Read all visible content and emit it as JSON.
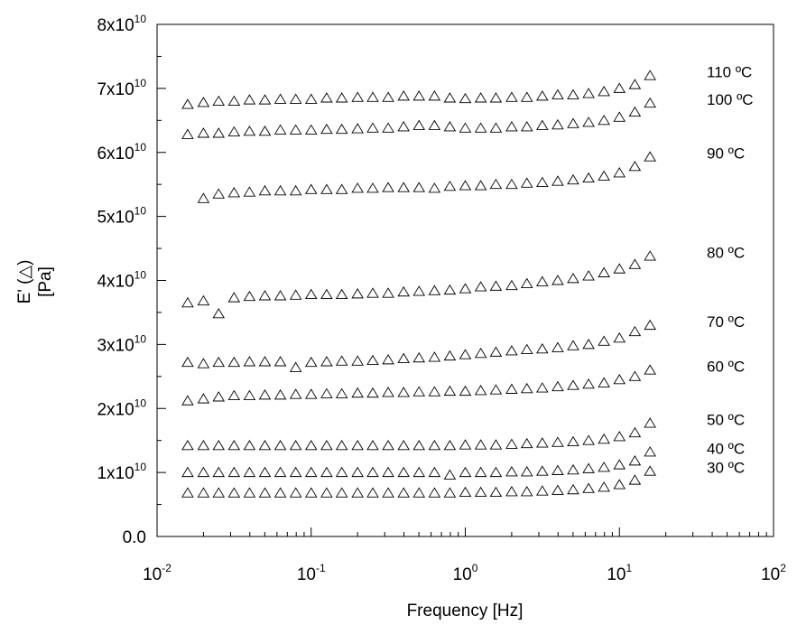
{
  "chart_data": {
    "type": "scatter",
    "title": "",
    "xlabel": "Frequency [Hz]",
    "ylabel_line1": "E' (△)",
    "ylabel_line2": "[Pa]",
    "xscale": "log",
    "xlim": [
      0.01,
      100
    ],
    "ylim": [
      0,
      80000000000
    ],
    "grid": false,
    "marker": "open-triangle",
    "x_ticks": [
      {
        "value": 0.01,
        "base": "10",
        "exp": "-2"
      },
      {
        "value": 0.1,
        "base": "10",
        "exp": "-1"
      },
      {
        "value": 1,
        "base": "10",
        "exp": "0"
      },
      {
        "value": 10,
        "base": "10",
        "exp": "1"
      },
      {
        "value": 100,
        "base": "10",
        "exp": "2"
      }
    ],
    "y_ticks": [
      {
        "value": 0,
        "base": "0.0",
        "exp": ""
      },
      {
        "value": 10000000000,
        "base": "1x10",
        "exp": "10"
      },
      {
        "value": 20000000000,
        "base": "2x10",
        "exp": "10"
      },
      {
        "value": 30000000000,
        "base": "3x10",
        "exp": "10"
      },
      {
        "value": 40000000000,
        "base": "4x10",
        "exp": "10"
      },
      {
        "value": 50000000000,
        "base": "5x10",
        "exp": "10"
      },
      {
        "value": 60000000000,
        "base": "6x10",
        "exp": "10"
      },
      {
        "value": 70000000000,
        "base": "7x10",
        "exp": "10"
      },
      {
        "value": 80000000000,
        "base": "8x10",
        "exp": "10"
      }
    ],
    "x": [
      0.0158,
      0.02,
      0.0251,
      0.0316,
      0.0398,
      0.0501,
      0.0631,
      0.0794,
      0.1,
      0.126,
      0.158,
      0.2,
      0.251,
      0.316,
      0.398,
      0.501,
      0.631,
      0.794,
      1.0,
      1.26,
      1.58,
      2.0,
      2.51,
      3.16,
      3.98,
      5.01,
      6.31,
      7.94,
      10.0,
      12.6,
      15.8
    ],
    "series": [
      {
        "name": "110 ºC",
        "values": [
          67500000000.0,
          67800000000.0,
          68000000000.0,
          68000000000.0,
          68200000000.0,
          68200000000.0,
          68300000000.0,
          68300000000.0,
          68300000000.0,
          68500000000.0,
          68500000000.0,
          68600000000.0,
          68600000000.0,
          68600000000.0,
          68800000000.0,
          68800000000.0,
          68800000000.0,
          68500000000.0,
          68400000000.0,
          68500000000.0,
          68500000000.0,
          68600000000.0,
          68600000000.0,
          68800000000.0,
          69000000000.0,
          69000000000.0,
          69200000000.0,
          69500000000.0,
          70000000000.0,
          70600000000.0,
          72000000000.0
        ]
      },
      {
        "name": "100 ºC",
        "values": [
          62800000000.0,
          63000000000.0,
          63000000000.0,
          63200000000.0,
          63300000000.0,
          63300000000.0,
          63500000000.0,
          63500000000.0,
          63500000000.0,
          63600000000.0,
          63600000000.0,
          63700000000.0,
          63800000000.0,
          63800000000.0,
          64000000000.0,
          64200000000.0,
          64200000000.0,
          64000000000.0,
          63800000000.0,
          63800000000.0,
          63800000000.0,
          64000000000.0,
          64000000000.0,
          64200000000.0,
          64300000000.0,
          64500000000.0,
          64700000000.0,
          65000000000.0,
          65500000000.0,
          66300000000.0,
          67700000000.0
        ]
      },
      {
        "name": "90 ºC",
        "values": [
          null,
          52800000000.0,
          53500000000.0,
          53700000000.0,
          53800000000.0,
          54000000000.0,
          54000000000.0,
          54000000000.0,
          54200000000.0,
          54200000000.0,
          54200000000.0,
          54400000000.0,
          54400000000.0,
          54500000000.0,
          54500000000.0,
          54500000000.0,
          54400000000.0,
          54700000000.0,
          54800000000.0,
          54800000000.0,
          55000000000.0,
          55000000000.0,
          55200000000.0,
          55300000000.0,
          55500000000.0,
          55700000000.0,
          56000000000.0,
          56300000000.0,
          56800000000.0,
          57800000000.0,
          59300000000.0
        ]
      },
      {
        "name": "80 ºC",
        "values": [
          36500000000.0,
          36800000000.0,
          34800000000.0,
          37300000000.0,
          37500000000.0,
          37600000000.0,
          37600000000.0,
          37700000000.0,
          37800000000.0,
          37800000000.0,
          37800000000.0,
          37900000000.0,
          38000000000.0,
          38000000000.0,
          38200000000.0,
          38300000000.0,
          38400000000.0,
          38500000000.0,
          38700000000.0,
          39000000000.0,
          39100000000.0,
          39200000000.0,
          39500000000.0,
          39800000000.0,
          40000000000.0,
          40300000000.0,
          40700000000.0,
          41200000000.0,
          41800000000.0,
          42500000000.0,
          43800000000.0
        ]
      },
      {
        "name": "70 ºC",
        "values": [
          27200000000.0,
          27000000000.0,
          27200000000.0,
          27200000000.0,
          27300000000.0,
          27300000000.0,
          27300000000.0,
          26400000000.0,
          27200000000.0,
          27300000000.0,
          27400000000.0,
          27400000000.0,
          27500000000.0,
          27600000000.0,
          27800000000.0,
          27900000000.0,
          28000000000.0,
          28200000000.0,
          28400000000.0,
          28600000000.0,
          28800000000.0,
          29000000000.0,
          29200000000.0,
          29300000000.0,
          29500000000.0,
          29800000000.0,
          30000000000.0,
          30500000000.0,
          31000000000.0,
          32000000000.0,
          33000000000.0
        ]
      },
      {
        "name": "60 ºC",
        "values": [
          21200000000.0,
          21500000000.0,
          21800000000.0,
          22000000000.0,
          22000000000.0,
          22100000000.0,
          22100000000.0,
          22200000000.0,
          22200000000.0,
          22300000000.0,
          22300000000.0,
          22400000000.0,
          22400000000.0,
          22500000000.0,
          22500000000.0,
          22600000000.0,
          22600000000.0,
          22700000000.0,
          22700000000.0,
          22800000000.0,
          22900000000.0,
          23000000000.0,
          23100000000.0,
          23200000000.0,
          23400000000.0,
          23600000000.0,
          23800000000.0,
          24000000000.0,
          24500000000.0,
          25000000000.0,
          26000000000.0
        ]
      },
      {
        "name": "50 ºC",
        "values": [
          14200000000.0,
          14200000000.0,
          14200000000.0,
          14200000000.0,
          14200000000.0,
          14200000000.0,
          14200000000.0,
          14200000000.0,
          14200000000.0,
          14200000000.0,
          14200000000.0,
          14200000000.0,
          14200000000.0,
          14200000000.0,
          14200000000.0,
          14200000000.0,
          14200000000.0,
          14200000000.0,
          14300000000.0,
          14300000000.0,
          14300000000.0,
          14400000000.0,
          14500000000.0,
          14600000000.0,
          14700000000.0,
          14800000000.0,
          15000000000.0,
          15200000000.0,
          15600000000.0,
          16200000000.0,
          17700000000.0
        ]
      },
      {
        "name": "40 ºC",
        "values": [
          10000000000.0,
          10000000000.0,
          10000000000.0,
          10000000000.0,
          10000000000.0,
          10000000000.0,
          10000000000.0,
          10000000000.0,
          10000000000.0,
          10000000000.0,
          10000000000.0,
          10000000000.0,
          10000000000.0,
          10000000000.0,
          10000000000.0,
          10000000000.0,
          10000000000.0,
          9600000000.0,
          10000000000.0,
          10000000000.0,
          10000000000.0,
          10100000000.0,
          10100000000.0,
          10200000000.0,
          10300000000.0,
          10400000000.0,
          10600000000.0,
          10800000000.0,
          11200000000.0,
          11800000000.0,
          13200000000.0
        ]
      },
      {
        "name": "30 ºC",
        "values": [
          6800000000.0,
          6800000000.0,
          6800000000.0,
          6800000000.0,
          6800000000.0,
          6800000000.0,
          6800000000.0,
          6800000000.0,
          6800000000.0,
          6800000000.0,
          6800000000.0,
          6800000000.0,
          6800000000.0,
          6800000000.0,
          6800000000.0,
          6800000000.0,
          6800000000.0,
          6800000000.0,
          6900000000.0,
          6900000000.0,
          6900000000.0,
          7000000000.0,
          7000000000.0,
          7100000000.0,
          7200000000.0,
          7300000000.0,
          7500000000.0,
          7700000000.0,
          8100000000.0,
          8800000000.0,
          10200000000.0
        ]
      }
    ]
  }
}
